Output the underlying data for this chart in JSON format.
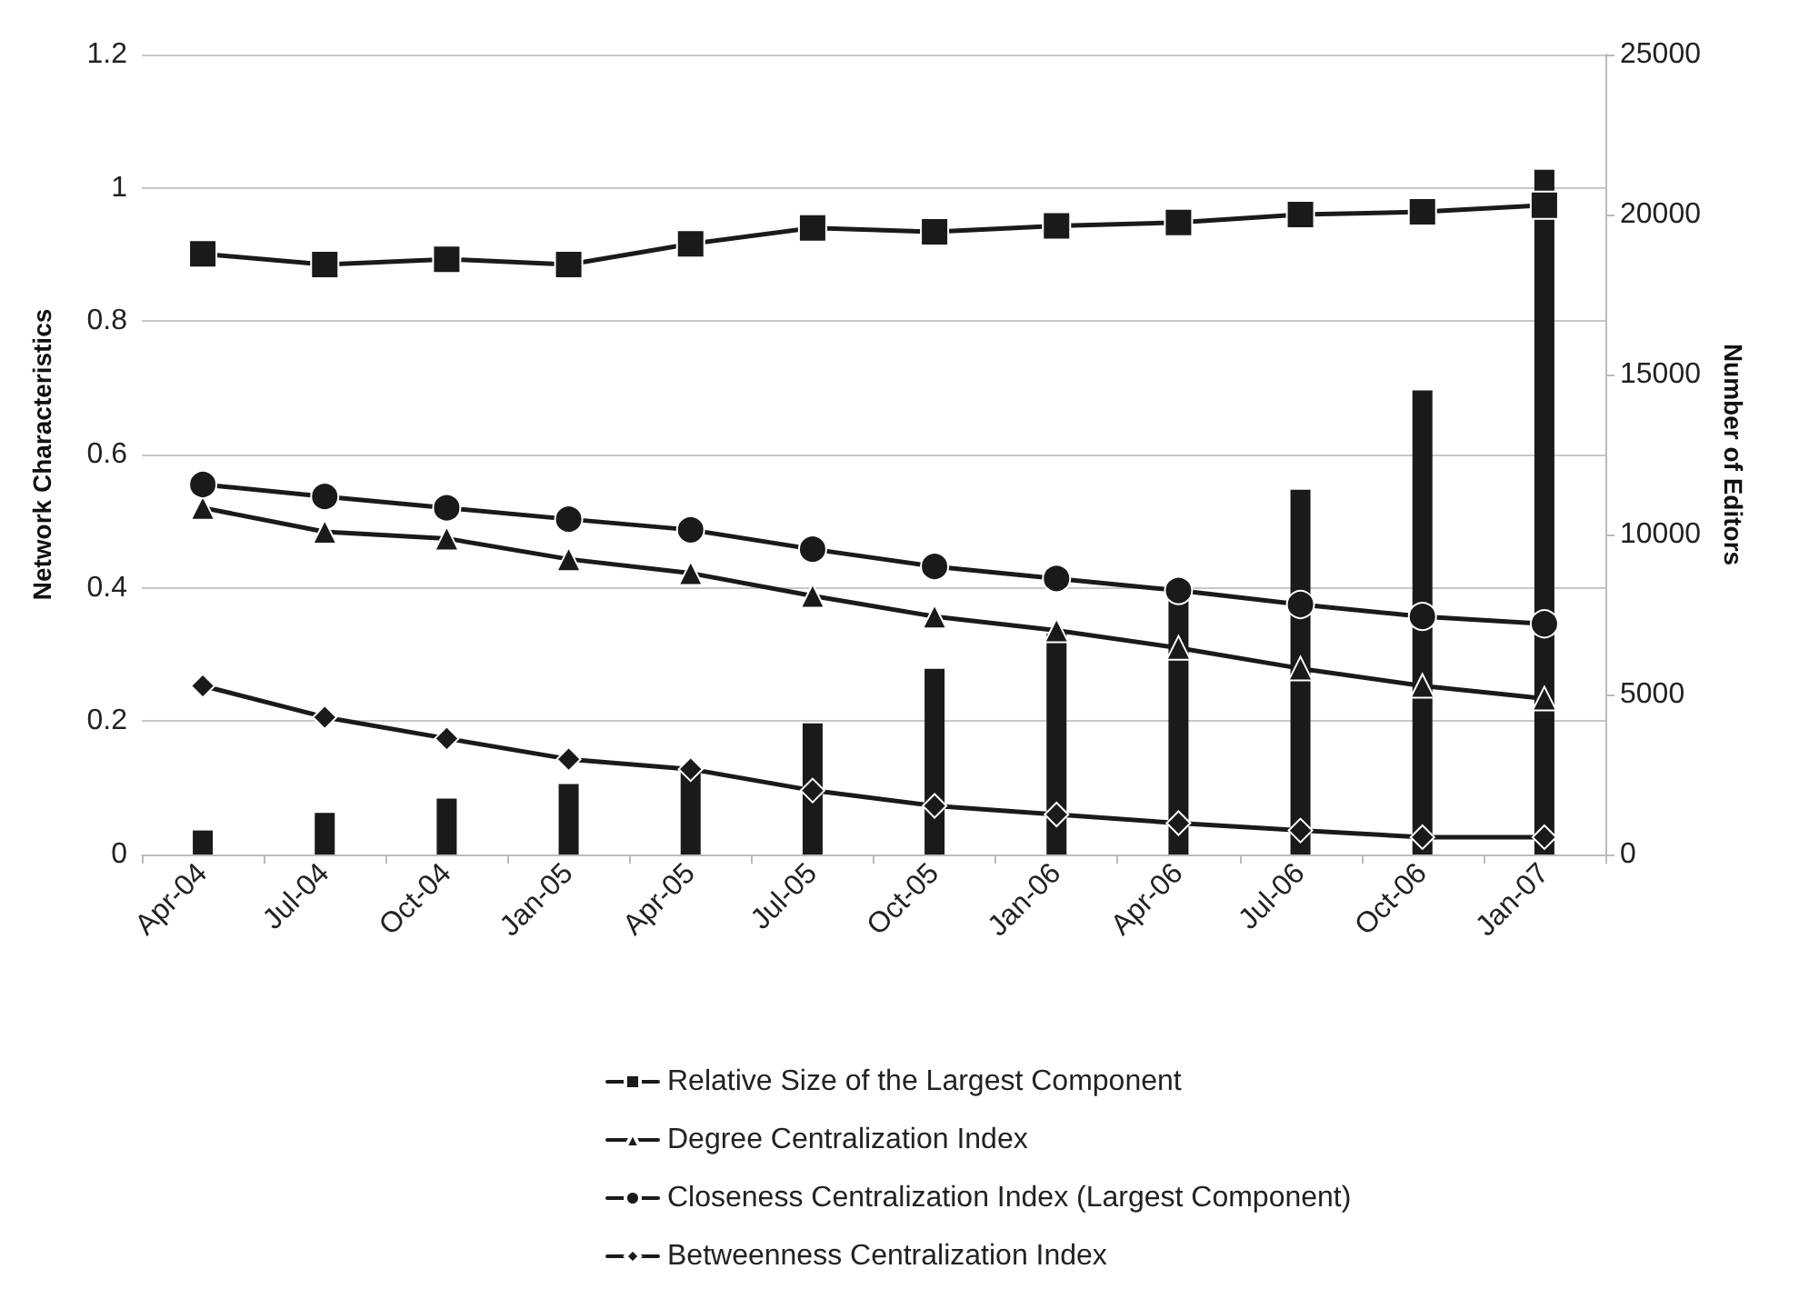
{
  "chart_data": {
    "type": "line",
    "categories": [
      "Apr-04",
      "Jul-04",
      "Oct-04",
      "Jan-05",
      "Apr-05",
      "Jul-05",
      "Oct-05",
      "Jan-06",
      "Apr-06",
      "Jul-06",
      "Oct-06",
      "Jan-07"
    ],
    "ylabel": "Network Characteristics",
    "y2label": "Number of Editors",
    "ylim": [
      0,
      1.2
    ],
    "yticks": [
      0,
      0.2,
      0.4,
      0.6,
      0.8,
      1,
      1.2
    ],
    "y2lim": [
      0,
      25000
    ],
    "y2ticks": [
      0,
      5000,
      10000,
      15000,
      20000,
      25000
    ],
    "grid": "y",
    "legend": "bottom",
    "line_style": "solid",
    "series": [
      {
        "type": "bar",
        "axis": "y2",
        "color": "#1a1a1a",
        "values": [
          750,
          1300,
          1750,
          2200,
          2600,
          4100,
          5800,
          6900,
          8000,
          11400,
          14500,
          21400
        ]
      },
      {
        "name": "Relative Size of the Largest Component",
        "marker": "square",
        "color": "#1a1a1a",
        "values": [
          0.901,
          0.885,
          0.893,
          0.885,
          0.916,
          0.94,
          0.934,
          0.943,
          0.948,
          0.96,
          0.964,
          0.974
        ]
      },
      {
        "name": "Degree Centralization Index",
        "marker": "triangle",
        "color": "#1a1a1a",
        "values": [
          0.52,
          0.484,
          0.474,
          0.443,
          0.422,
          0.388,
          0.357,
          0.336,
          0.31,
          0.279,
          0.253,
          0.234
        ]
      },
      {
        "name": "Closeness Centralization Index (Largest Component)",
        "marker": "circle",
        "color": "#1a1a1a",
        "values": [
          0.555,
          0.537,
          0.52,
          0.503,
          0.487,
          0.458,
          0.432,
          0.414,
          0.396,
          0.375,
          0.357,
          0.346
        ]
      },
      {
        "name": "Betweenness Centralization Index",
        "marker": "diamond",
        "color": "#1a1a1a",
        "values": [
          0.253,
          0.206,
          0.174,
          0.143,
          0.128,
          0.096,
          0.073,
          0.06,
          0.047,
          0.036,
          0.026,
          0.026
        ]
      }
    ]
  }
}
